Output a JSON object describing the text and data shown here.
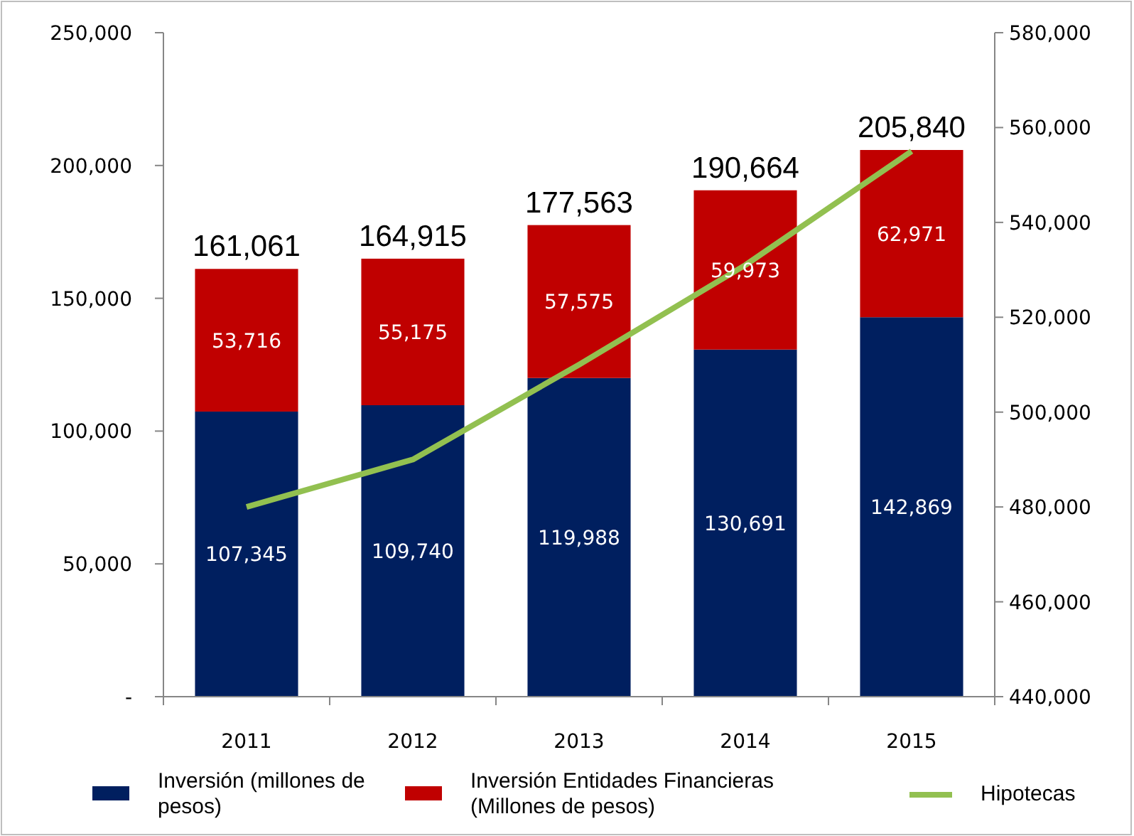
{
  "chart_data": {
    "type": "bar",
    "stacked": true,
    "categories": [
      "2011",
      "2012",
      "2013",
      "2014",
      "2015"
    ],
    "series": [
      {
        "name": "Inversión (millones de pesos)",
        "color": "#001f5f",
        "values": [
          107345,
          109740,
          119988,
          130691,
          142869
        ],
        "value_labels": [
          "107,345",
          "109,740",
          "119,988",
          "130,691",
          "142,869"
        ]
      },
      {
        "name": "Inversión Entidades Financieras (Millones de pesos)",
        "color": "#c00000",
        "values": [
          53716,
          55175,
          57575,
          59973,
          62971
        ],
        "value_labels": [
          "53,716",
          "55,175",
          "57,575",
          "59,973",
          "62,971"
        ]
      },
      {
        "name": "Hipotecas",
        "type": "line",
        "axis": "y2",
        "color": "#92c050",
        "values": [
          480000,
          490000,
          510000,
          531000,
          555000
        ]
      }
    ],
    "totals": [
      "161,061",
      "164,915",
      "177,563",
      "190,664",
      "205,840"
    ],
    "ylim": [
      0,
      250000
    ],
    "yticks": [
      {
        "value": 0,
        "label": "-"
      },
      {
        "value": 50000,
        "label": "50,000"
      },
      {
        "value": 100000,
        "label": "100,000"
      },
      {
        "value": 150000,
        "label": "150,000"
      },
      {
        "value": 200000,
        "label": "200,000"
      },
      {
        "value": 250000,
        "label": "250,000"
      }
    ],
    "y2lim": [
      440000,
      580000
    ],
    "y2ticks": [
      {
        "value": 440000,
        "label": "440,000"
      },
      {
        "value": 460000,
        "label": "460,000"
      },
      {
        "value": 480000,
        "label": "480,000"
      },
      {
        "value": 500000,
        "label": "500,000"
      },
      {
        "value": 520000,
        "label": "520,000"
      },
      {
        "value": 540000,
        "label": "540,000"
      },
      {
        "value": 560000,
        "label": "560,000"
      },
      {
        "value": 580000,
        "label": "580,000"
      }
    ],
    "legend": "bottom",
    "grid": false
  }
}
